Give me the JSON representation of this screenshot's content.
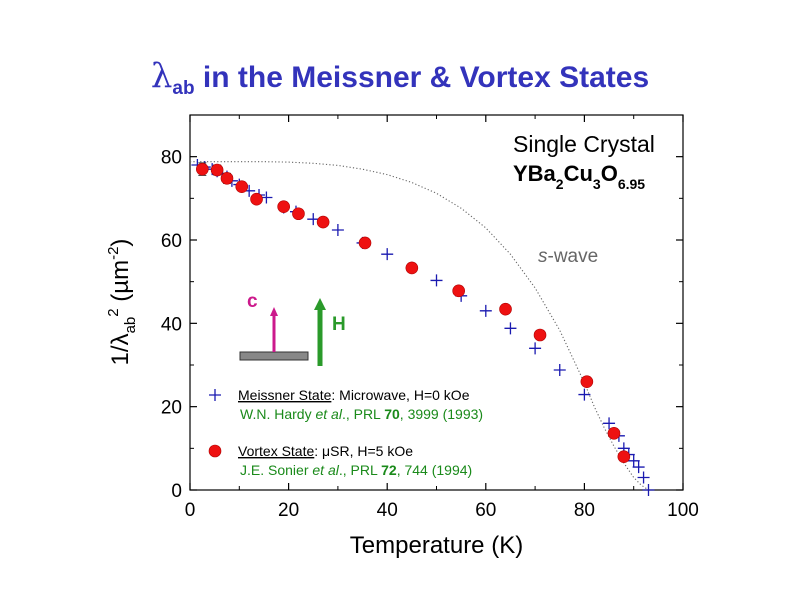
{
  "title": {
    "symbol": "λ",
    "subscript": "ab",
    "rest": " in the Meissner & Vortex States"
  },
  "colors": {
    "title": "#3333bb",
    "vortex_marker": "#ee1111",
    "meissner_marker": "#1a1ab0",
    "reference_text": "#1a8a1a",
    "c_axis_arrow": "#cc1a8c",
    "field_arrow": "#2a9a2a",
    "swave_curve": "#666666"
  },
  "annotations": {
    "crystal_line1": "Single Crystal",
    "compound": [
      {
        "text": "YBa",
        "sub": false
      },
      {
        "text": "2",
        "sub": true
      },
      {
        "text": "Cu",
        "sub": false
      },
      {
        "text": "3",
        "sub": true
      },
      {
        "text": "O",
        "sub": false
      },
      {
        "text": "6.95",
        "sub": true
      }
    ],
    "swave_italic": "s",
    "swave_rest": "-wave",
    "c_label": "c",
    "h_label": "H"
  },
  "legend": [
    {
      "marker": "plus",
      "state": "Meissner State",
      "rest": ": Microwave, H=0 kOe",
      "ref": [
        {
          "text": "W.N. Hardy ",
          "style": "normal"
        },
        {
          "text": "et al",
          "style": "italic"
        },
        {
          "text": "., PRL ",
          "style": "normal"
        },
        {
          "text": "70",
          "style": "bold"
        },
        {
          "text": ", 3999 (1993)",
          "style": "normal"
        }
      ]
    },
    {
      "marker": "circle",
      "state": "Vortex State",
      "rest": ": μSR, H=5 kOe",
      "ref": [
        {
          "text": "J.E. Sonier ",
          "style": "normal"
        },
        {
          "text": "et al",
          "style": "italic"
        },
        {
          "text": "., PRL ",
          "style": "normal"
        },
        {
          "text": "72",
          "style": "bold"
        },
        {
          "text": ", 744 (1994)",
          "style": "normal"
        }
      ]
    }
  ],
  "chart_data": {
    "type": "scatter",
    "xlabel": "Temperature (K)",
    "ylabel_parts": [
      {
        "text": "1/",
        "shift": "base"
      },
      {
        "text": "λ",
        "shift": "base"
      },
      {
        "text": "ab",
        "shift": "sub"
      },
      {
        "text": "2",
        "shift": "sup"
      },
      {
        "text": "  (µm",
        "shift": "base"
      },
      {
        "text": "-2",
        "shift": "sup"
      },
      {
        "text": ")",
        "shift": "base"
      }
    ],
    "xlim": [
      0,
      100
    ],
    "ylim": [
      0,
      90
    ],
    "xticks": [
      0,
      20,
      40,
      60,
      80,
      100
    ],
    "yticks": [
      0,
      20,
      40,
      60,
      80
    ],
    "xtick_labels": [
      "0",
      "20",
      "40",
      "60",
      "80",
      "100"
    ],
    "ytick_labels": [
      "0",
      "20",
      "40",
      "60",
      "80"
    ],
    "grid": false,
    "legend_position": "bottom-left",
    "series": [
      {
        "marker": "plus",
        "x": [
          1.5,
          3,
          4.5,
          5.5,
          6.5,
          7.5,
          8.5,
          10,
          12,
          14,
          15.5,
          19,
          21.5,
          25,
          30,
          35,
          40,
          45,
          50,
          55,
          60,
          65,
          70,
          75,
          80,
          85,
          87,
          88,
          89,
          90,
          91,
          92,
          93
        ],
        "y": [
          78,
          77.5,
          77,
          76.5,
          76,
          75.2,
          74.2,
          73.3,
          71.8,
          70.8,
          70.2,
          67.8,
          66.8,
          65,
          62.4,
          59.3,
          56.6,
          53.3,
          50.3,
          46.6,
          43,
          38.8,
          34,
          28.8,
          22.9,
          16,
          13,
          10,
          8.5,
          7,
          5.5,
          3,
          0
        ]
      },
      {
        "marker": "circle",
        "x": [
          2.5,
          5.5,
          7.5,
          10.5,
          13.5,
          19,
          22,
          27,
          35.5,
          45,
          54.5,
          64,
          71,
          80.5,
          86,
          88
        ],
        "y": [
          77,
          76.8,
          74.8,
          72.8,
          69.8,
          68,
          66.3,
          64.3,
          59.3,
          53.3,
          47.8,
          43.4,
          37.2,
          26,
          13.6,
          8
        ],
        "yerr": [
          1.5,
          1.2,
          1.2,
          1.0,
          1.0,
          1.0,
          1.0,
          1.0,
          1.0,
          1.0,
          1.0,
          1.0,
          1.0,
          1.0,
          1.0,
          1.0
        ]
      },
      {
        "style": "dotted",
        "x": [
          0,
          5,
          10,
          15,
          20,
          25,
          30,
          35,
          40,
          45,
          50,
          55,
          60,
          65,
          70,
          75,
          80,
          82,
          84,
          86,
          88,
          90,
          91.5,
          93
        ],
        "y": [
          78.8,
          78.8,
          78.8,
          78.8,
          78.7,
          78.4,
          77.9,
          77,
          75.7,
          73.8,
          71.2,
          67.6,
          62.9,
          56.6,
          48.5,
          38.3,
          25.7,
          20,
          15,
          10.5,
          6.5,
          3,
          1.2,
          0
        ]
      }
    ]
  }
}
